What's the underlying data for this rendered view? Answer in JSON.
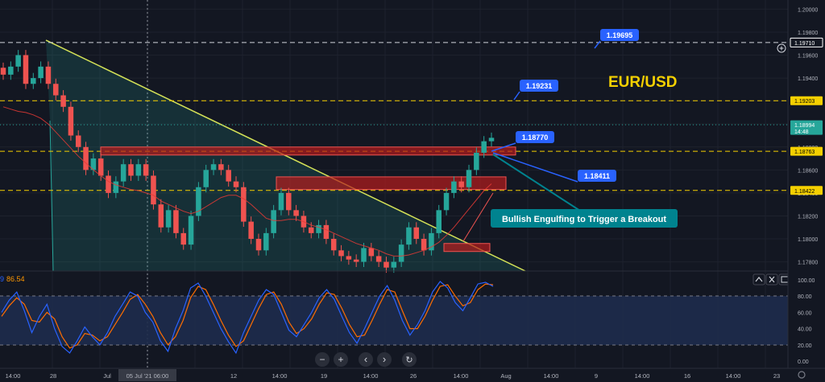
{
  "symbol_label": "EUR/USD",
  "price_scale": {
    "ticks": [
      "1.20000",
      "1.19800",
      "1.19600",
      "1.19400",
      "1.19200",
      "1.19000",
      "1.18800",
      "1.18600",
      "1.18400",
      "1.18200",
      "1.18000",
      "1.17800"
    ],
    "tags": [
      {
        "value": "1.19710",
        "style": "white-outline"
      },
      {
        "value": "1.19203",
        "style": "yellow"
      },
      {
        "value": "1.18994",
        "sub": "14:48",
        "style": "teal"
      },
      {
        "value": "1.18763",
        "style": "yellow"
      },
      {
        "value": "1.18422",
        "style": "yellow"
      }
    ]
  },
  "time_axis": {
    "labels": [
      "14:00",
      "28",
      "Jul",
      "05 Jul '21  06:00",
      "12",
      "14:00",
      "19",
      "14:00",
      "26",
      "14:00",
      "Aug",
      "14:00",
      "9",
      "14:00",
      "16",
      "14:00",
      "23"
    ],
    "highlighted": "05 Jul '21  06:00"
  },
  "callouts": [
    {
      "id": "1.19695",
      "text": "1.19695"
    },
    {
      "id": "1.19231",
      "text": "1.19231"
    },
    {
      "id": "1.18770",
      "text": "1.18770"
    },
    {
      "id": "1.18411",
      "text": "1.18411"
    }
  ],
  "annotation": "Bullish Engulfing to Trigger a Breakout",
  "oscillator": {
    "header_value": "86.54",
    "header_prefix": "9",
    "ticks": [
      "100.00",
      "80.00",
      "60.00",
      "40.00",
      "20.00",
      "0.00"
    ],
    "overbought": 80,
    "oversold": 20,
    "range": [
      0,
      100
    ]
  },
  "toolbar": {
    "zoom_out": "−",
    "zoom_in": "+",
    "prev": "‹",
    "next": "›",
    "reset": "↻"
  },
  "colors": {
    "background": "#131722",
    "up": "#26a69a",
    "down": "#ef5350",
    "trendline": "#d4e157",
    "level_line": "#f5d000",
    "callout": "#2962ff",
    "annotation_bg": "#00838f",
    "stoch_k": "#2962ff",
    "stoch_d": "#ff6d00",
    "zone": "#b71c1c"
  },
  "chart_data": {
    "type": "candlestick",
    "pair": "EUR/USD",
    "ylim": [
      1.1772,
      1.2008
    ],
    "horizontal_levels": [
      1.1971,
      1.19203,
      1.18763,
      1.18422
    ],
    "resistance_zones": [
      [
        1.1873,
        1.188
      ],
      [
        1.1843,
        1.1854
      ],
      [
        1.1789,
        1.1796
      ]
    ],
    "trendline": {
      "from": 1.1973,
      "to": 1.1763
    },
    "last_price": 1.18994,
    "close_path": [
      1.1943,
      1.195,
      1.196,
      1.1935,
      1.194,
      1.195,
      1.1935,
      1.1925,
      1.1915,
      1.189,
      1.188,
      1.186,
      1.187,
      1.1855,
      1.184,
      1.185,
      1.1865,
      1.1855,
      1.1865,
      1.1855,
      1.183,
      1.181,
      1.1825,
      1.1805,
      1.1795,
      1.182,
      1.1845,
      1.186,
      1.1865,
      1.186,
      1.185,
      1.1845,
      1.1815,
      1.18,
      1.179,
      1.1805,
      1.1825,
      1.184,
      1.1825,
      1.182,
      1.181,
      1.1805,
      1.1812,
      1.18,
      1.179,
      1.1785,
      1.1782,
      1.178,
      1.1792,
      1.1785,
      1.178,
      1.1775,
      1.178,
      1.1795,
      1.181,
      1.18,
      1.179,
      1.1805,
      1.1825,
      1.184,
      1.185,
      1.1845,
      1.186,
      1.1875,
      1.1885,
      1.1888
    ],
    "ma_path": [
      1.1915,
      1.1913,
      1.1911,
      1.191,
      1.1908,
      1.1905,
      1.19,
      1.1893,
      1.1886,
      1.1879,
      1.1872,
      1.1866,
      1.186,
      1.1855,
      1.185,
      1.1847,
      1.1845,
      1.1843,
      1.1842,
      1.184,
      1.1838,
      1.1833,
      1.183,
      1.1827,
      1.1824,
      1.1822,
      1.1824,
      1.1828,
      1.1832,
      1.1836,
      1.1838,
      1.1838,
      1.1835,
      1.183,
      1.1824,
      1.1818,
      1.1816,
      1.1816,
      1.1817,
      1.1817,
      1.1815,
      1.1812,
      1.181,
      1.1808,
      1.1805,
      1.1802,
      1.1799,
      1.1796,
      1.1794,
      1.1792,
      1.179,
      1.1787,
      1.1785,
      1.1785,
      1.1786,
      1.1788,
      1.179,
      1.1793,
      1.1797,
      1.1803,
      1.181,
      1.1818,
      1.1826,
      1.1834,
      1.1842,
      1.1848
    ],
    "stoch_k": [
      60,
      75,
      85,
      62,
      35,
      55,
      70,
      40,
      18,
      10,
      25,
      42,
      30,
      20,
      35,
      55,
      70,
      85,
      80,
      60,
      48,
      25,
      12,
      40,
      62,
      90,
      96,
      80,
      60,
      40,
      24,
      10,
      35,
      55,
      75,
      88,
      82,
      60,
      38,
      30,
      45,
      60,
      78,
      88,
      76,
      55,
      35,
      22,
      40,
      60,
      80,
      93,
      75,
      50,
      32,
      45,
      62,
      85,
      98,
      90,
      72,
      62,
      78,
      95,
      97,
      92
    ],
    "stoch_d": [
      55,
      68,
      78,
      70,
      50,
      48,
      60,
      52,
      30,
      16,
      20,
      34,
      32,
      25,
      30,
      45,
      60,
      76,
      82,
      70,
      55,
      35,
      20,
      30,
      50,
      78,
      92,
      88,
      70,
      50,
      32,
      18,
      25,
      45,
      65,
      82,
      85,
      70,
      48,
      34,
      40,
      52,
      70,
      84,
      82,
      65,
      45,
      30,
      32,
      50,
      70,
      88,
      85,
      62,
      40,
      40,
      55,
      75,
      92,
      94,
      80,
      68,
      72,
      88,
      95,
      94
    ]
  }
}
